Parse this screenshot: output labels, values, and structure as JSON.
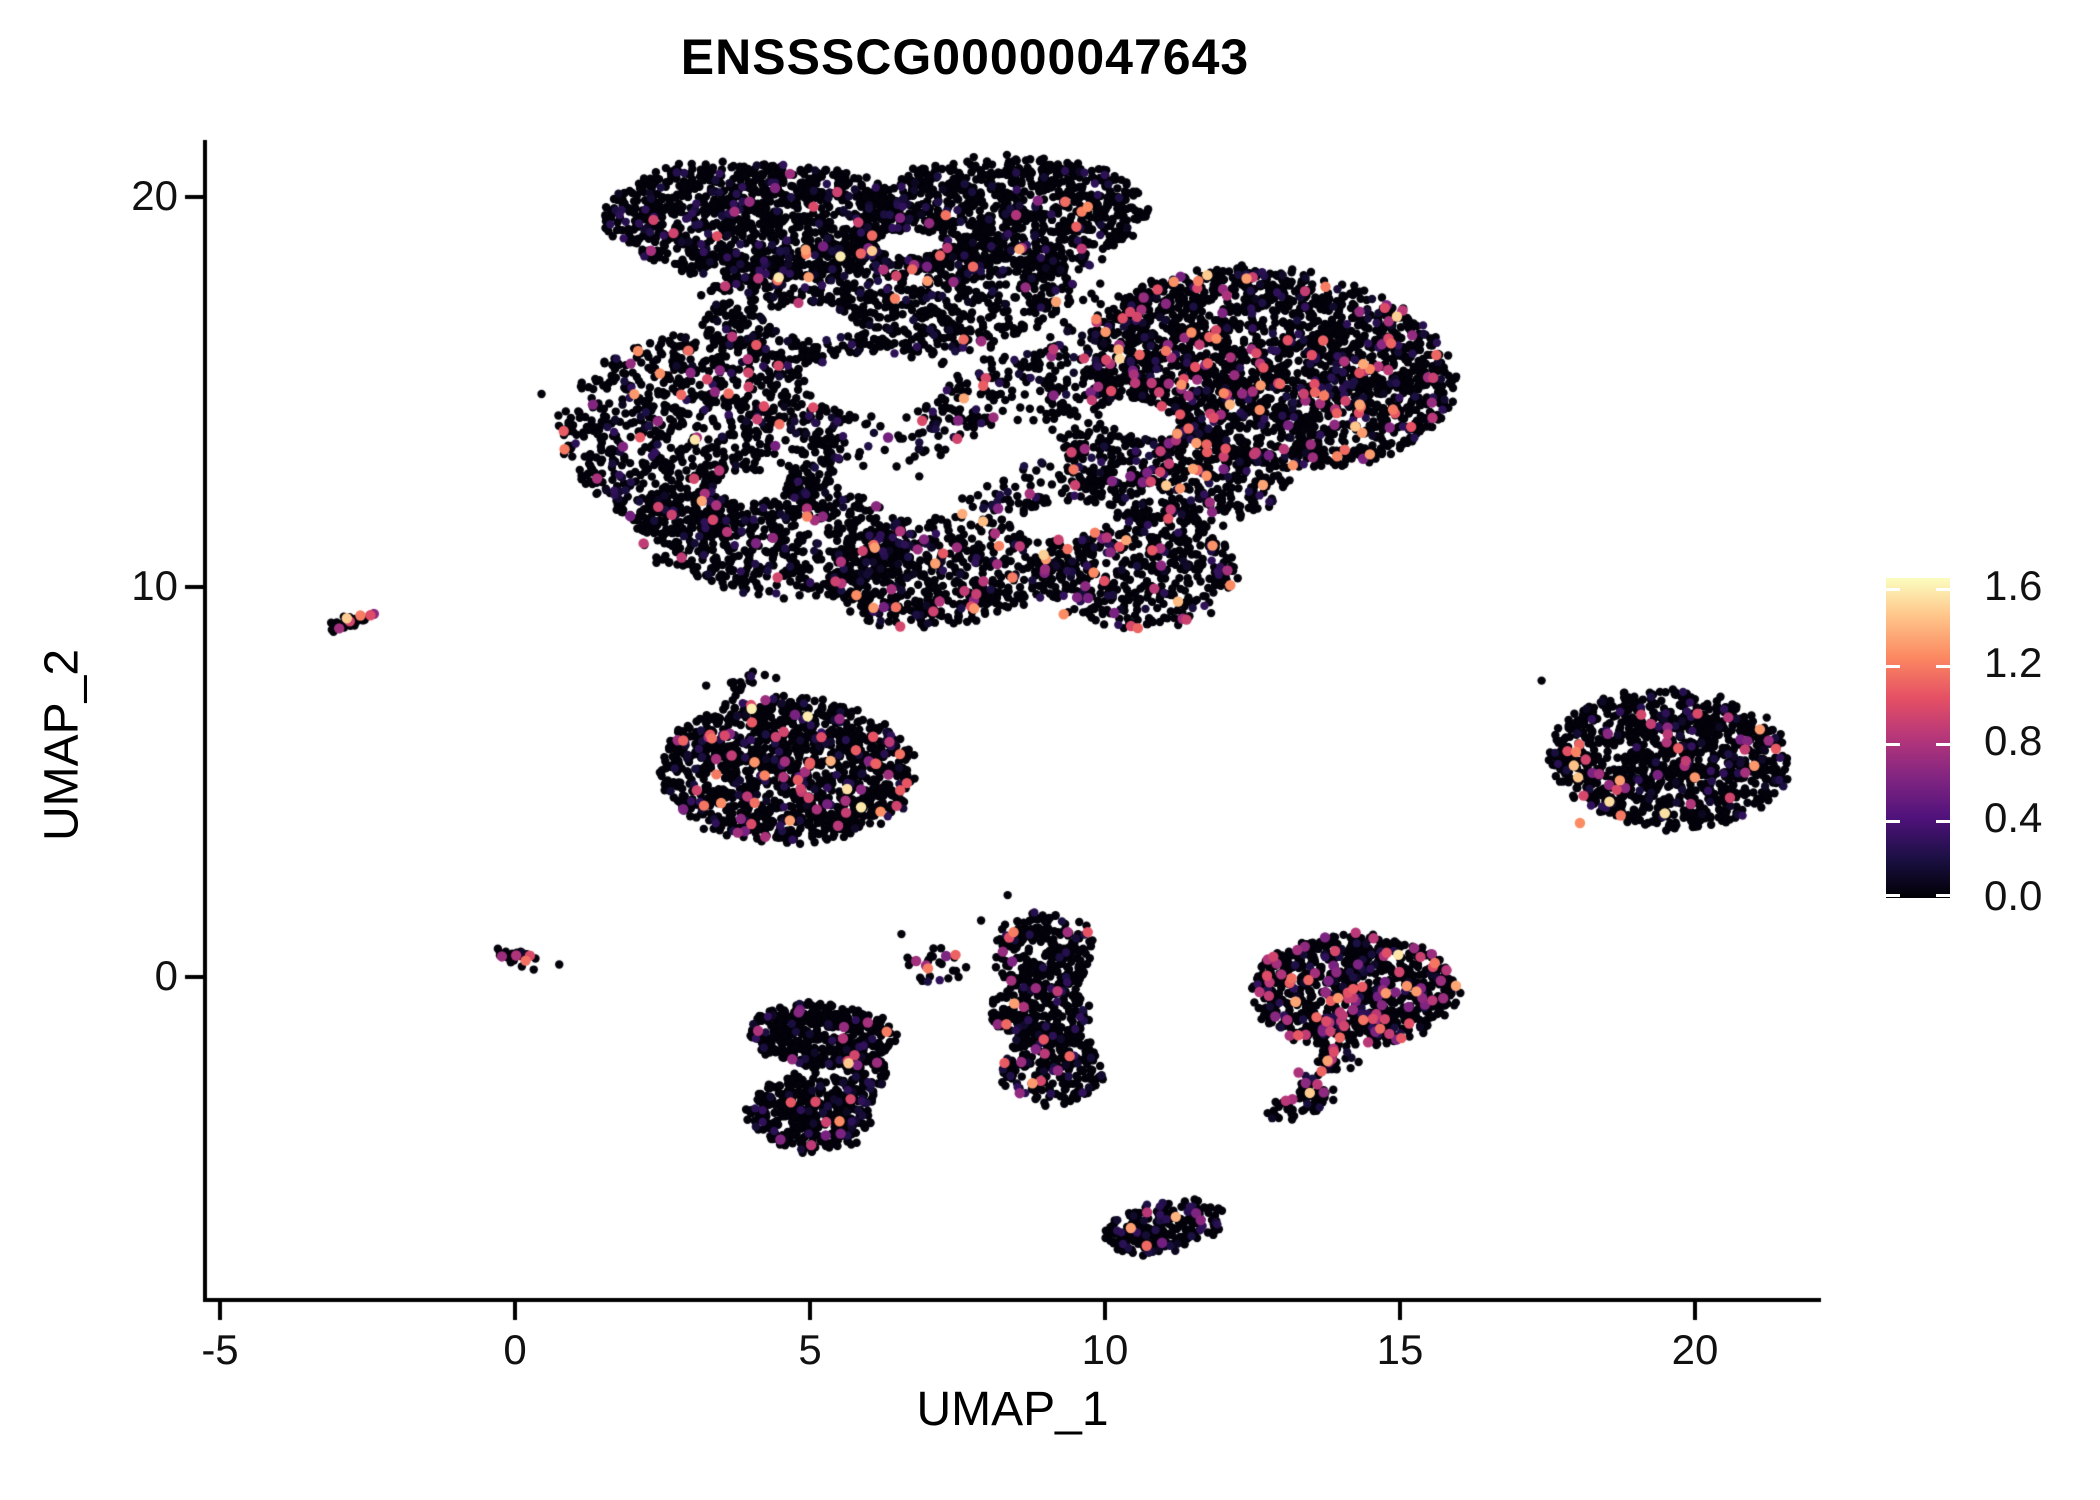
{
  "title": "ENSSSCG00000047643",
  "chart_data": {
    "type": "scatter",
    "title": "ENSSSCG00000047643",
    "xlabel": "UMAP_1",
    "ylabel": "UMAP_2",
    "xticks": [
      -5,
      0,
      5,
      10,
      15,
      20
    ],
    "yticks": [
      0,
      10,
      20
    ],
    "xlim": [
      -6.3,
      22.5
    ],
    "ylim": [
      -8.6,
      21.9
    ],
    "grid": false,
    "legend_position": "right",
    "colorbar": {
      "ticks": [
        0.0,
        0.4,
        0.8,
        1.2,
        1.6
      ],
      "domain": [
        0,
        1.65
      ],
      "magma_stops": [
        "#000004",
        "#1C1044",
        "#4F127B",
        "#812581",
        "#B5367A",
        "#E55064",
        "#FB8761",
        "#FEC287",
        "#FCFDBF"
      ]
    },
    "clusters": [
      {
        "name": "top-band-left",
        "cx": 4.2,
        "cy": 19.4,
        "rx": 2.7,
        "ry": 1.5,
        "rot": -4,
        "n": 1100,
        "fc": 0.012,
        "holes": true
      },
      {
        "name": "top-band-right",
        "cx": 8.2,
        "cy": 19.5,
        "rx": 2.5,
        "ry": 1.5,
        "rot": 6,
        "n": 1000,
        "fc": 0.02,
        "holes": true
      },
      {
        "name": "upper-mid",
        "cx": 6.3,
        "cy": 17.4,
        "rx": 3.2,
        "ry": 1.6,
        "rot": 8,
        "n": 900,
        "fc": 0.02,
        "holes": true
      },
      {
        "name": "right-lobe",
        "cx": 12.8,
        "cy": 15.6,
        "rx": 3.2,
        "ry": 2.5,
        "rot": -18,
        "n": 2100,
        "fc": 0.07,
        "holes": true
      },
      {
        "name": "mid-diagonal",
        "cx": 9.0,
        "cy": 14.0,
        "rx": 2.4,
        "ry": 2.0,
        "rot": 35,
        "n": 450,
        "fc": 0.05,
        "holes": true
      },
      {
        "name": "left-mid",
        "cx": 3.2,
        "cy": 13.9,
        "rx": 2.4,
        "ry": 2.6,
        "rot": 5,
        "n": 950,
        "fc": 0.035,
        "holes": true
      },
      {
        "name": "left-lower",
        "cx": 4.4,
        "cy": 11.3,
        "rx": 2.4,
        "ry": 1.5,
        "rot": -12,
        "n": 650,
        "fc": 0.045,
        "holes": true
      },
      {
        "name": "bottom-mid",
        "cx": 7.2,
        "cy": 10.4,
        "rx": 2.0,
        "ry": 1.4,
        "rot": 15,
        "n": 520,
        "fc": 0.05,
        "holes": true
      },
      {
        "name": "bottom-right-bulge",
        "cx": 10.5,
        "cy": 10.5,
        "rx": 1.7,
        "ry": 1.6,
        "rot": 0,
        "n": 520,
        "fc": 0.06,
        "holes": true
      },
      {
        "name": "lobe-neck",
        "cx": 11.2,
        "cy": 12.9,
        "rx": 1.9,
        "ry": 1.3,
        "rot": -10,
        "n": 420,
        "fc": 0.06,
        "holes": true
      },
      {
        "name": "sparse-fill",
        "cx": 7.5,
        "cy": 15.8,
        "rx": 4.3,
        "ry": 2.6,
        "rot": 15,
        "n": 300,
        "fc": 0.03,
        "holes": true
      },
      {
        "name": "tiny-left-streak",
        "cx": -2.82,
        "cy": 9.1,
        "rx": 0.5,
        "ry": 0.1,
        "rot": 27,
        "n": 26,
        "fc": 0.18,
        "holes": false
      },
      {
        "name": "mid-left-island",
        "cx": 4.6,
        "cy": 5.3,
        "rx": 2.15,
        "ry": 1.85,
        "rot": -5,
        "n": 1250,
        "fc": 0.05,
        "holes": false
      },
      {
        "name": "island-wisp",
        "cx": 3.9,
        "cy": 7.5,
        "rx": 0.7,
        "ry": 0.25,
        "rot": 10,
        "n": 16,
        "fc": 0,
        "holes": false
      },
      {
        "name": "right-island",
        "cx": 19.55,
        "cy": 5.6,
        "rx": 2.05,
        "ry": 1.75,
        "rot": -12,
        "n": 1050,
        "fc": 0.04,
        "holes": false
      },
      {
        "name": "tiny-zero-cluster",
        "cx": 0.1,
        "cy": 0.5,
        "rx": 0.45,
        "ry": 0.2,
        "rot": -18,
        "n": 20,
        "fc": 0.1,
        "holes": false
      },
      {
        "name": "sparse-v",
        "cx": 7.2,
        "cy": 0.35,
        "rx": 0.55,
        "ry": 0.5,
        "rot": 0,
        "n": 26,
        "fc": 0.05,
        "holes": false
      },
      {
        "name": "column-top",
        "cx": 9.0,
        "cy": 0.6,
        "rx": 0.8,
        "ry": 1.05,
        "rot": 0,
        "n": 260,
        "fc": 0.04,
        "holes": false
      },
      {
        "name": "column-mid",
        "cx": 8.9,
        "cy": -0.9,
        "rx": 0.85,
        "ry": 0.75,
        "rot": 0,
        "n": 200,
        "fc": 0.04,
        "holes": false
      },
      {
        "name": "column-bottom",
        "cx": 9.1,
        "cy": -2.3,
        "rx": 0.85,
        "ry": 0.95,
        "rot": 0,
        "n": 230,
        "fc": 0.05,
        "holes": false
      },
      {
        "name": "pair-top",
        "cx": 5.2,
        "cy": -1.5,
        "rx": 1.2,
        "ry": 0.8,
        "rot": -8,
        "n": 420,
        "fc": 0.02,
        "holes": false
      },
      {
        "name": "pair-bottom",
        "cx": 5.0,
        "cy": -3.5,
        "rx": 1.05,
        "ry": 0.95,
        "rot": 15,
        "n": 380,
        "fc": 0.02,
        "holes": false
      },
      {
        "name": "pair-bridge",
        "cx": 5.9,
        "cy": -2.5,
        "rx": 0.45,
        "ry": 0.6,
        "rot": 0,
        "n": 70,
        "fc": 0.02,
        "holes": false
      },
      {
        "name": "right-center-blob",
        "cx": 14.2,
        "cy": -0.35,
        "rx": 1.75,
        "ry": 1.4,
        "rot": 0,
        "n": 850,
        "fc": 0.1,
        "holes": false
      },
      {
        "name": "rc-tail-1",
        "cx": 13.9,
        "cy": -2.1,
        "rx": 0.35,
        "ry": 0.4,
        "rot": 0,
        "n": 30,
        "fc": 0.12,
        "holes": false
      },
      {
        "name": "rc-tail-2",
        "cx": 13.55,
        "cy": -2.8,
        "rx": 0.3,
        "ry": 0.45,
        "rot": 20,
        "n": 32,
        "fc": 0.15,
        "holes": false
      },
      {
        "name": "rc-tail-3",
        "cx": 13.25,
        "cy": -3.3,
        "rx": 0.5,
        "ry": 0.28,
        "rot": 30,
        "n": 40,
        "fc": 0.1,
        "holes": false
      },
      {
        "name": "bottom-crescent",
        "cx": 11.0,
        "cy": -6.4,
        "rx": 1.05,
        "ry": 0.6,
        "rot": 22,
        "n": 240,
        "fc": 0.035,
        "holes": false
      }
    ],
    "holes": [
      {
        "cx": 6.1,
        "cy": 15.2,
        "rx": 1.15,
        "ry": 0.8,
        "rot": 0
      },
      {
        "cx": 8.0,
        "cy": 13.3,
        "rx": 1.3,
        "ry": 0.55,
        "rot": 40
      },
      {
        "cx": 5.0,
        "cy": 16.8,
        "rx": 0.75,
        "ry": 0.45,
        "rot": -10
      },
      {
        "cx": 9.3,
        "cy": 11.7,
        "rx": 0.85,
        "ry": 0.45,
        "rot": 10
      },
      {
        "cx": 6.7,
        "cy": 18.8,
        "rx": 0.6,
        "ry": 0.35,
        "rot": 0
      },
      {
        "cx": 4.0,
        "cy": 12.6,
        "rx": 0.6,
        "ry": 0.4,
        "rot": 0
      },
      {
        "cx": 10.6,
        "cy": 14.3,
        "rx": 0.7,
        "ry": 0.45,
        "rot": -30
      }
    ],
    "special_points": [
      {
        "x": 5.63,
        "y": 4.82,
        "v": 1.55
      },
      {
        "x": 5.35,
        "y": 5.54,
        "v": 1.38
      },
      {
        "x": -2.62,
        "y": 9.27,
        "v": 1.2
      },
      {
        "x": -2.98,
        "y": 8.94,
        "v": 0.75
      },
      {
        "x": -2.8,
        "y": 9.12,
        "v": 0.95
      },
      {
        "x": 0.02,
        "y": 0.55,
        "v": 0.8
      },
      {
        "x": 0.18,
        "y": 0.42,
        "v": 1.15
      },
      {
        "x": 7.0,
        "y": 0.22,
        "v": 1.2
      },
      {
        "x": 8.45,
        "y": 1.15,
        "v": 1.2
      },
      {
        "x": 18.05,
        "y": 3.95,
        "v": 1.25
      },
      {
        "x": 21.1,
        "y": 6.35,
        "v": 1.3
      },
      {
        "x": 11.2,
        "y": -6.15,
        "v": 1.4
      },
      {
        "x": 13.6,
        "y": -2.75,
        "v": 0.85
      },
      {
        "x": 6.3,
        "y": -1.4,
        "v": 1.2
      },
      {
        "x": 5.5,
        "y": -3.7,
        "v": 1.25
      },
      {
        "x": 9.3,
        "y": 9.3,
        "v": 1.25
      }
    ],
    "outliers": [
      [
        0.45,
        14.95
      ],
      [
        0.75,
        0.32
      ],
      [
        6.55,
        1.1
      ],
      [
        7.9,
        1.45
      ],
      [
        8.35,
        2.1
      ],
      [
        17.4,
        7.6
      ]
    ]
  },
  "axis": {
    "x_label": "UMAP_1",
    "y_label": "UMAP_2"
  }
}
